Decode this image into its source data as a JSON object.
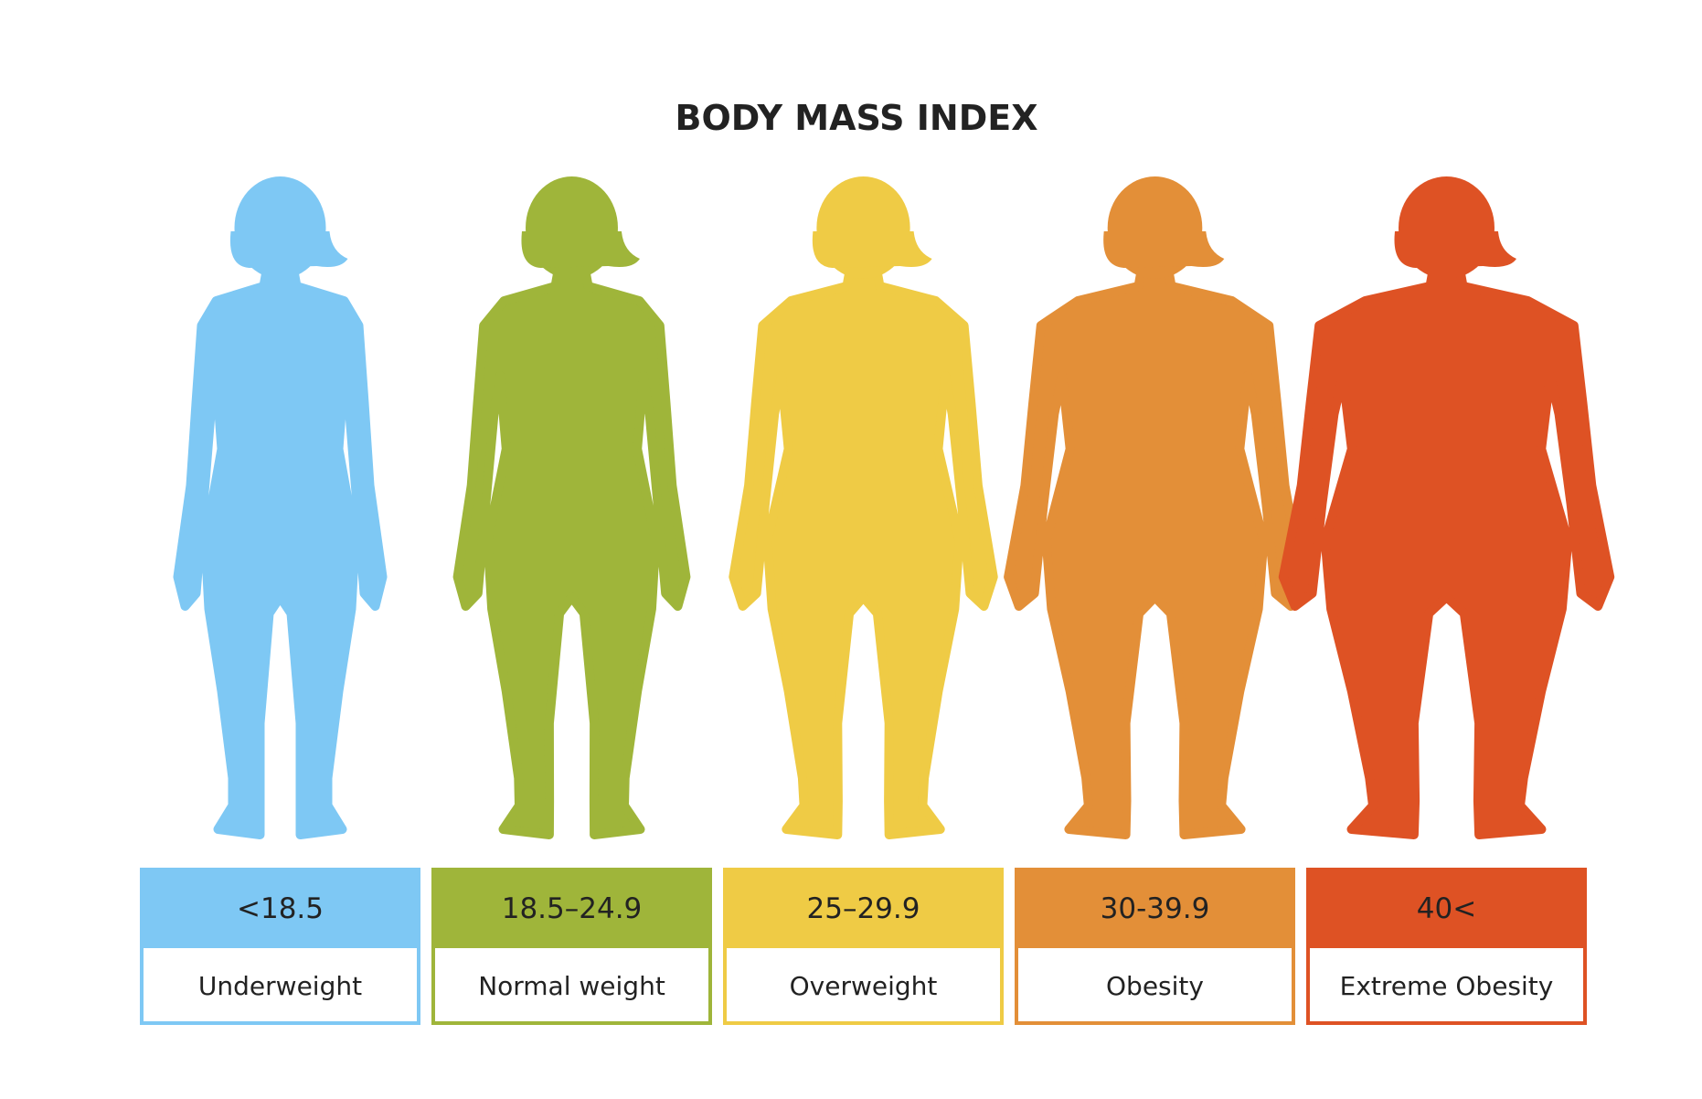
{
  "title": "BODY MASS INDEX",
  "categories": [
    {
      "range": "<18.5",
      "label": "Underweight",
      "color": "#7ec8f4"
    },
    {
      "range": "18.5–24.9",
      "label": "Normal weight",
      "color": "#9fb53a"
    },
    {
      "range": "25–29.9",
      "label": "Overweight",
      "color": "#efcb45"
    },
    {
      "range": "30-39.9",
      "label": "Obesity",
      "color": "#e38f38"
    },
    {
      "range": "40<",
      "label": "Extreme Obesity",
      "color": "#de5224"
    }
  ]
}
